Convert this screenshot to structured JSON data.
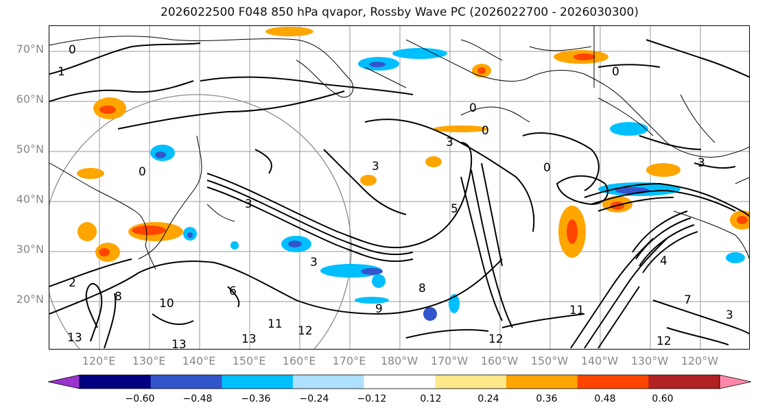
{
  "title": "2026022500 F048 850 hPa qvapor, Rossby Wave PC (2026022700 - 2026030300)",
  "lat_labels": [
    "70°N",
    "60°N",
    "50°N",
    "40°N",
    "30°N",
    "20°N"
  ],
  "lon_labels": [
    "120°E",
    "130°E",
    "140°E",
    "150°E",
    "160°E",
    "170°E",
    "180°W",
    "170°W",
    "160°W",
    "150°W",
    "140°W",
    "130°W",
    "120°W"
  ],
  "colorbar": {
    "colors": [
      "#9933cc",
      "#000080",
      "#3355cc",
      "#00bfff",
      "#b0e0ff",
      "#ffffff",
      "#ffe88a",
      "#ffa500",
      "#ff4500",
      "#b22222",
      "#ff88aa"
    ],
    "ticks": [
      "−0.60",
      "−0.48",
      "−0.36",
      "−0.24",
      "−0.12",
      "0.12",
      "0.24",
      "0.36",
      "0.48",
      "0.60"
    ]
  },
  "contour_labels": [
    "0",
    "1",
    "3",
    "5",
    "6",
    "8",
    "9",
    "10",
    "11",
    "12",
    "13",
    "4",
    "7",
    "2"
  ]
}
